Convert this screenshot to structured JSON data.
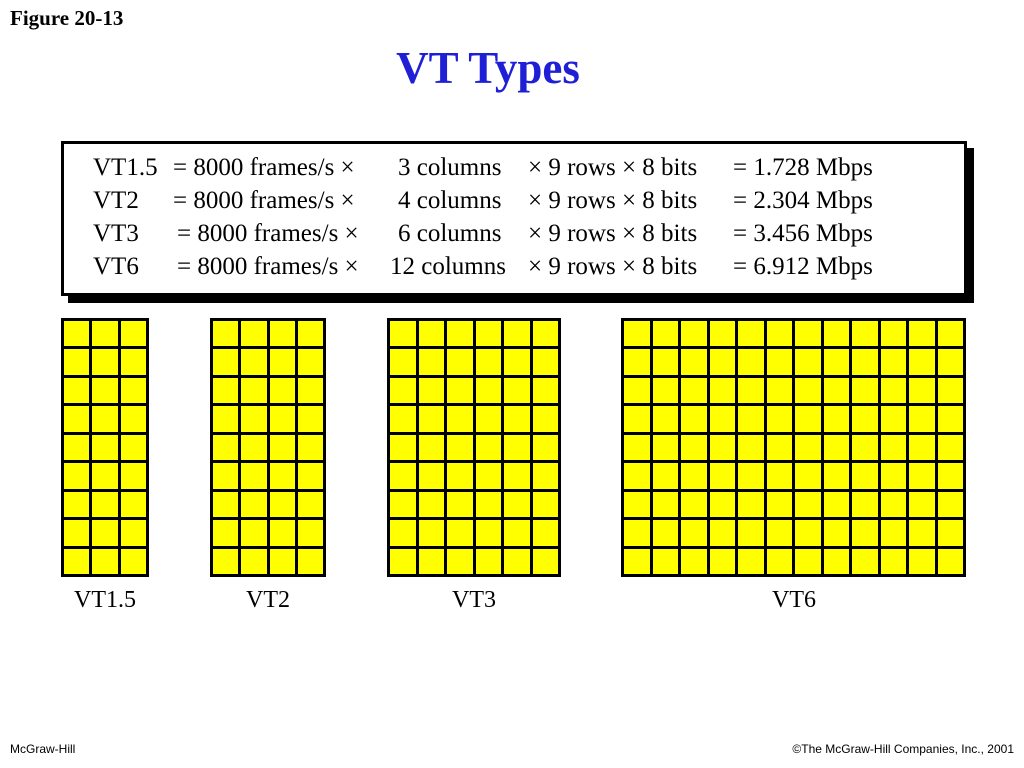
{
  "figure_label": "Figure 20-13",
  "title": "VT Types",
  "formulas": [
    {
      "name": "VT1.5",
      "rate": "= 8000 frames/s ×",
      "cols": "3 columns",
      "rows": "× 9 rows × 8 bits",
      "result": "= 1.728 Mbps"
    },
    {
      "name": "VT2",
      "rate": "= 8000 frames/s ×",
      "cols": "4 columns",
      "rows": "× 9 rows × 8 bits",
      "result": "= 2.304 Mbps"
    },
    {
      "name": "VT3",
      "rate": "= 8000 frames/s ×",
      "cols": "6 columns",
      "rows": "× 9 rows × 8 bits",
      "result": "= 3.456 Mbps"
    },
    {
      "name": "VT6",
      "rate": "= 8000 frames/s ×",
      "cols": "12 columns",
      "rows": "× 9 rows × 8 bits",
      "result": "= 6.912 Mbps"
    }
  ],
  "grids": [
    {
      "label": "VT1.5",
      "columns": 3,
      "rows": 9
    },
    {
      "label": "VT2",
      "columns": 4,
      "rows": 9
    },
    {
      "label": "VT3",
      "columns": 6,
      "rows": 9
    },
    {
      "label": "VT6",
      "columns": 12,
      "rows": 9
    }
  ],
  "colors": {
    "title": "#1f1fd6",
    "cell": "#ffff00",
    "border": "#000000"
  },
  "footer": {
    "left": "McGraw-Hill",
    "right": "©The McGraw-Hill Companies, Inc., 2001"
  }
}
